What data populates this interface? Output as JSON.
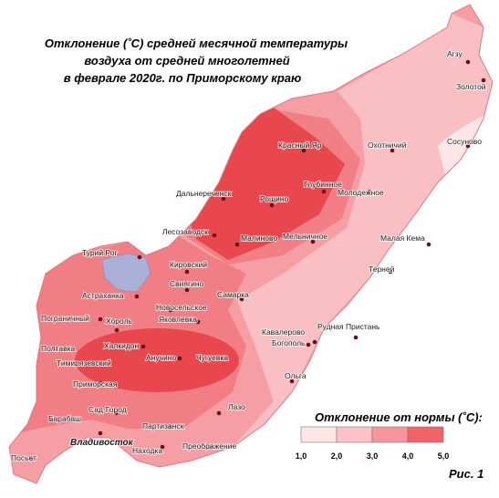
{
  "title": {
    "lines": [
      "Отклонение (˚С) средней  месячной температуры",
      "воздуха  от средней многолетней",
      "в феврале 2020г. по Приморскому краю"
    ]
  },
  "legend": {
    "title": "Отклонение от нормы (˚С):",
    "ticks": [
      "1,0",
      "2,0",
      "3,0",
      "4,0",
      "5,0"
    ]
  },
  "figure_label": "Рис. 1",
  "cities": [
    "Агзу",
    "Золотой",
    "Сосуново",
    "Красный Яр",
    "Охотничий",
    "Глубинное",
    "Дальнереченск",
    "Рощино",
    "Молодежное",
    "Лесозаводск",
    "Малиново",
    "Мельничное",
    "Малая Кема",
    "Турий Рог",
    "Кировский",
    "Терней",
    "Свиягино",
    "Астраханка",
    "Новосельское",
    "Самарка",
    "Пограничный",
    "Хороль",
    "Яковлевка",
    "Рудная Пристань",
    "Кавалерово",
    "Халкидон",
    "Богополь",
    "Полтавка",
    "Анучино",
    "Чугуевка",
    "Тимирязевский",
    "Ольга",
    "Приморская",
    "Лазо",
    "Сад-Город",
    "Барабаш",
    "Партизанск",
    "Владивосток",
    "Находка",
    "Преображение",
    "Посьет"
  ]
}
